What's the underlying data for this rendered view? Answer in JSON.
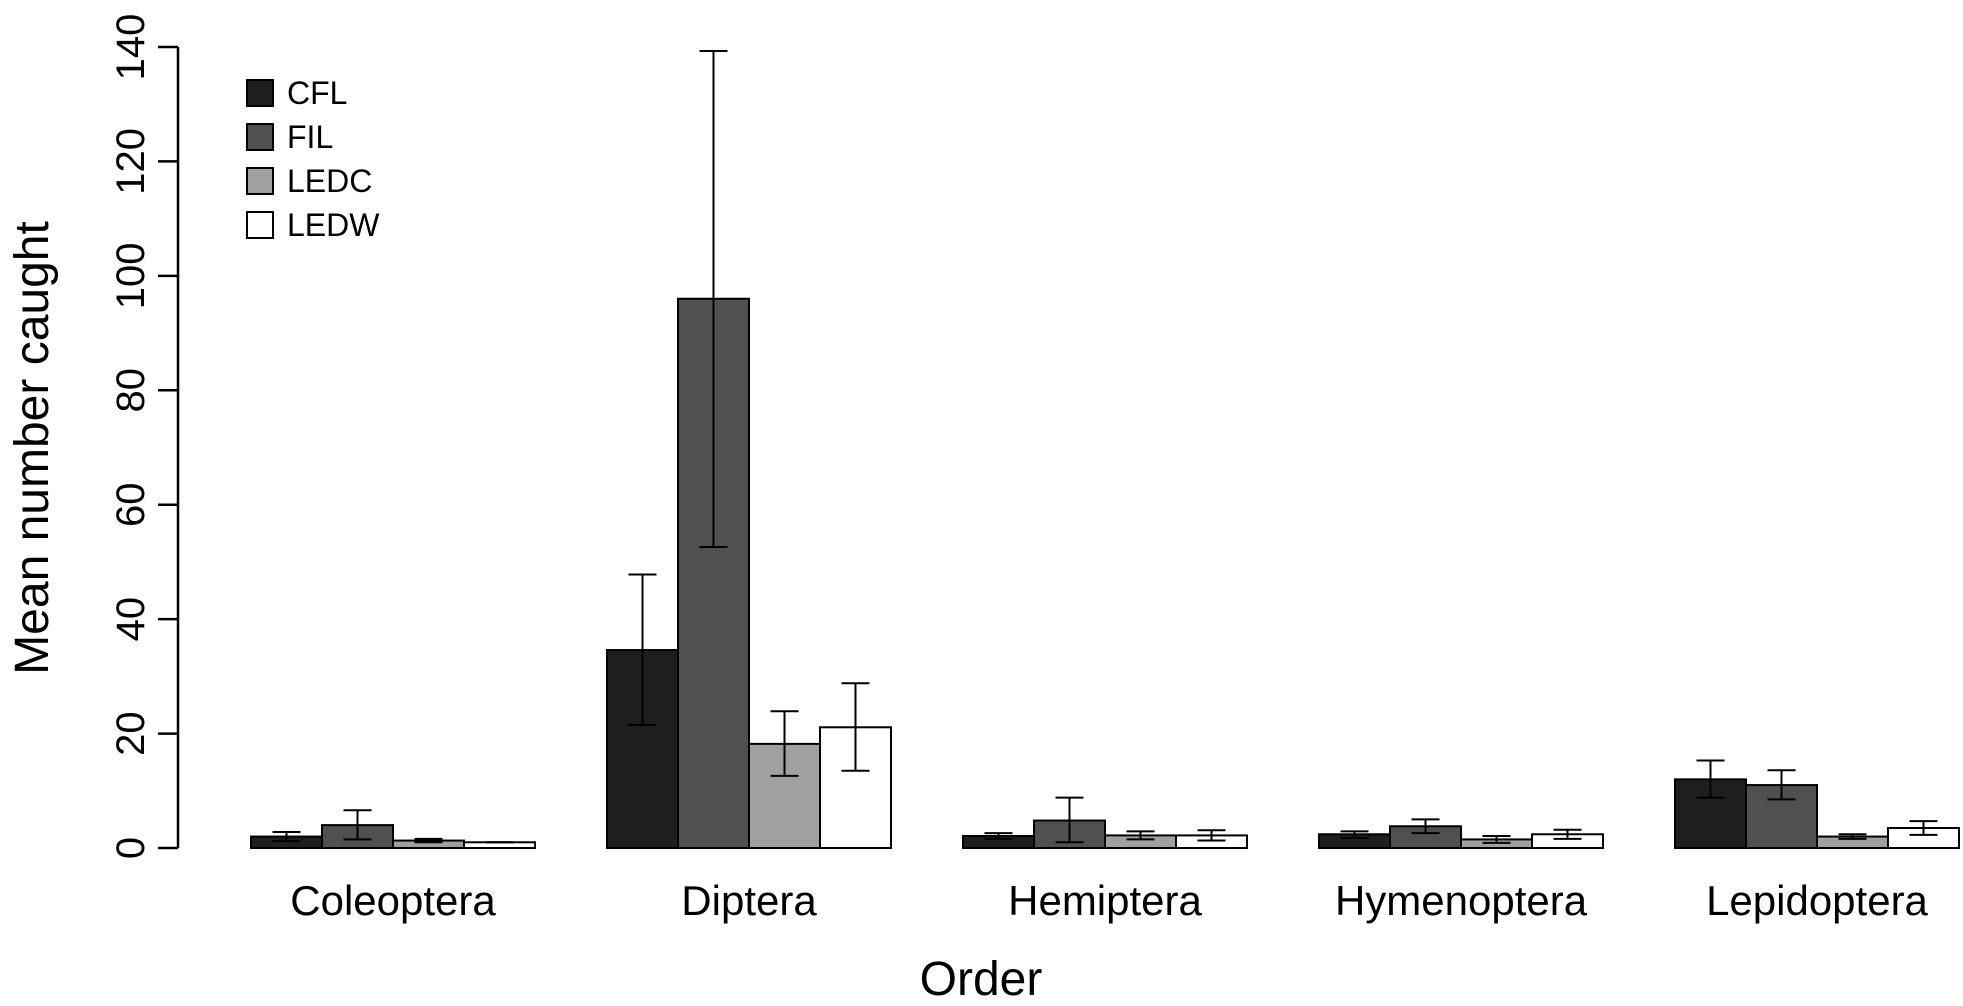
{
  "chart_data": {
    "type": "bar",
    "title": "",
    "xlabel": "Order",
    "ylabel": "Mean number caught",
    "ylim": [
      0,
      140
    ],
    "yticks": [
      0,
      20,
      40,
      60,
      80,
      100,
      120,
      140
    ],
    "grid": false,
    "legend_position": "top-left",
    "categories": [
      "Coleoptera",
      "Diptera",
      "Hemiptera",
      "Hymenoptera",
      "Lepidoptera"
    ],
    "series": [
      {
        "name": "CFL",
        "color": "#1e1e1e",
        "values": [
          2.0,
          34.6,
          2.1,
          2.4,
          12.0
        ],
        "err_low": [
          1.2,
          21.5,
          1.6,
          1.8,
          8.8
        ],
        "err_high": [
          2.8,
          47.8,
          2.6,
          2.9,
          15.3
        ]
      },
      {
        "name": "FIL",
        "color": "#505050",
        "values": [
          4.0,
          96.0,
          4.8,
          3.8,
          11.0
        ],
        "err_low": [
          1.5,
          52.6,
          1.0,
          2.6,
          8.5
        ],
        "err_high": [
          6.6,
          139.3,
          8.8,
          5.0,
          13.6
        ]
      },
      {
        "name": "LEDC",
        "color": "#a0a0a0",
        "values": [
          1.3,
          18.2,
          2.2,
          1.5,
          2.0
        ],
        "err_low": [
          1.0,
          12.6,
          1.5,
          0.9,
          1.6
        ],
        "err_high": [
          1.6,
          23.9,
          2.9,
          2.1,
          2.4
        ]
      },
      {
        "name": "LEDW",
        "color": "#ffffff",
        "values": [
          1.0,
          21.1,
          2.2,
          2.4,
          3.5
        ],
        "err_low": [
          1.0,
          13.5,
          1.3,
          1.6,
          2.3
        ],
        "err_high": [
          1.0,
          28.8,
          3.1,
          3.2,
          4.7
        ]
      }
    ]
  }
}
